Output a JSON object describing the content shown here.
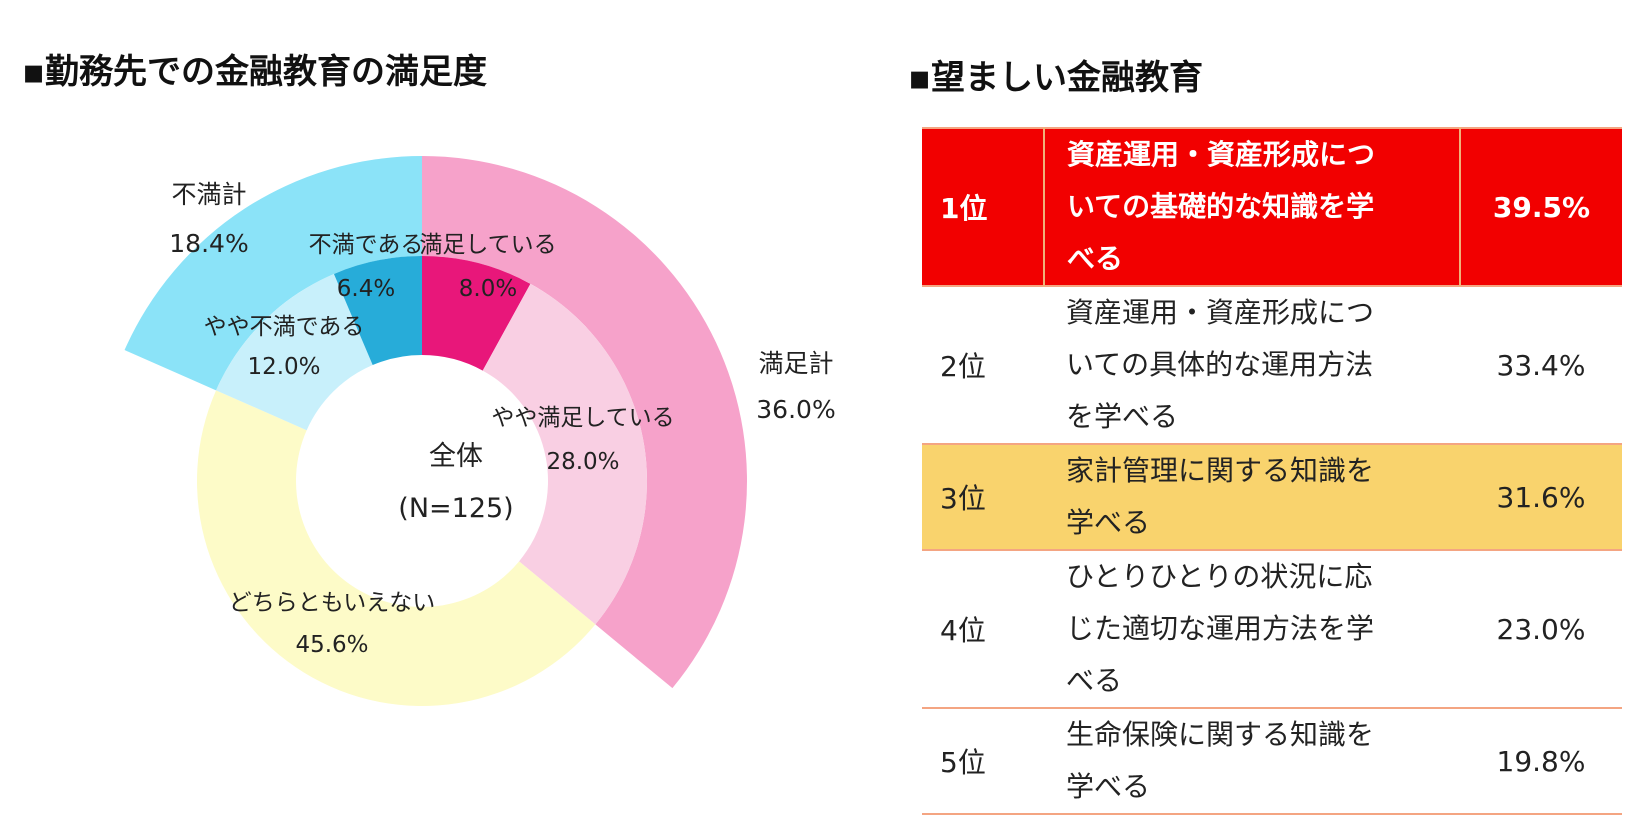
{
  "left_heading": "▪勤務先での金融教育の満足度",
  "right_heading": "▪望ましい金融教育",
  "chart_data": {
    "type": "pie",
    "title": "勤務先での金融教育の満足度",
    "center_label": "全体",
    "center_sublabel": "(N=125)",
    "inner": [
      {
        "name": "満足している",
        "value": 8.0,
        "label": "8.0%",
        "color": "#e8177a"
      },
      {
        "name": "やや満足している",
        "value": 28.0,
        "label": "28.0%",
        "color": "#f9cfe3"
      },
      {
        "name": "どちらともいえない",
        "value": 45.6,
        "label": "45.6%",
        "color": "#fdfbc8"
      },
      {
        "name": "やや不満である",
        "value": 12.0,
        "label": "12.0%",
        "color": "#c8f0fb"
      },
      {
        "name": "不満である",
        "value": 6.4,
        "label": "6.4%",
        "color": "#27acd9"
      }
    ],
    "outer": [
      {
        "name": "満足計",
        "value": 36.0,
        "label": "36.0%",
        "color": "#f6a2ca"
      },
      {
        "name": "不満計",
        "value": 18.4,
        "label": "18.4%",
        "color": "#8be3f8"
      }
    ]
  },
  "table": {
    "rows": [
      {
        "rank": "1位",
        "lines": [
          "資産運用・資産形成につ",
          "いての基礎的な知識を学",
          "べる"
        ],
        "pct": "39.5%",
        "highlight": "red"
      },
      {
        "rank": "2位",
        "lines": [
          "資産運用・資産形成につ",
          "いての具体的な運用方法",
          "を学べる"
        ],
        "pct": "33.4%",
        "highlight": ""
      },
      {
        "rank": "3位",
        "lines": [
          "家計管理に関する知識を",
          "学べる"
        ],
        "pct": "31.6%",
        "highlight": "yellow"
      },
      {
        "rank": "4位",
        "lines": [
          "ひとりひとりの状況に応",
          "じた適切な運用方法を学",
          "べる"
        ],
        "pct": "23.0%",
        "highlight": ""
      },
      {
        "rank": "5位",
        "lines": [
          "生命保険に関する知識を",
          "学べる"
        ],
        "pct": "19.8%",
        "highlight": ""
      }
    ]
  }
}
